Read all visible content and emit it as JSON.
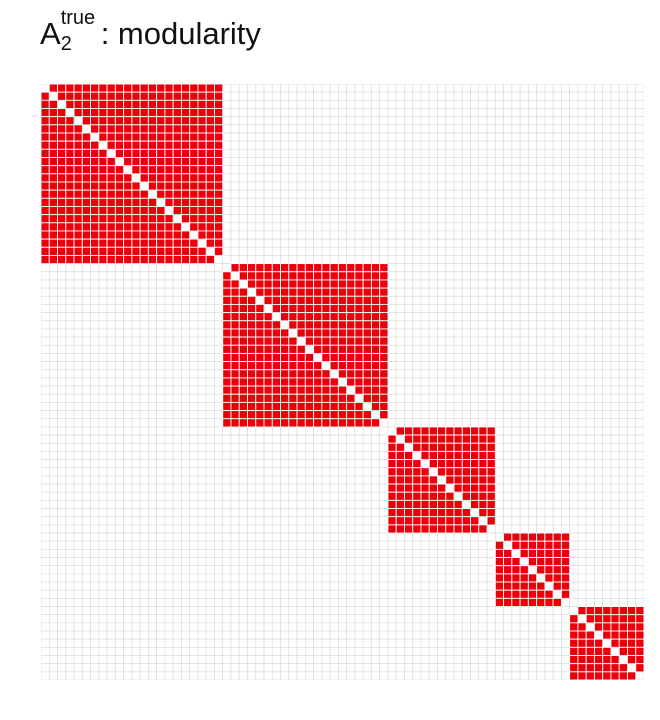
{
  "title": {
    "base": "A",
    "superscript": "true",
    "subscript": "2",
    "rest": ": modularity"
  },
  "chart_data": {
    "type": "heatmap",
    "title": "A_2^true: modularity",
    "n": 73,
    "block_sizes": [
      22,
      20,
      13,
      9,
      9
    ],
    "diagonal_value": 0,
    "within_block_value": 1,
    "between_block_value": 0,
    "colors": {
      "on": "#e8000b",
      "off": "#ffffff",
      "grid": "#dcdcdc"
    }
  }
}
